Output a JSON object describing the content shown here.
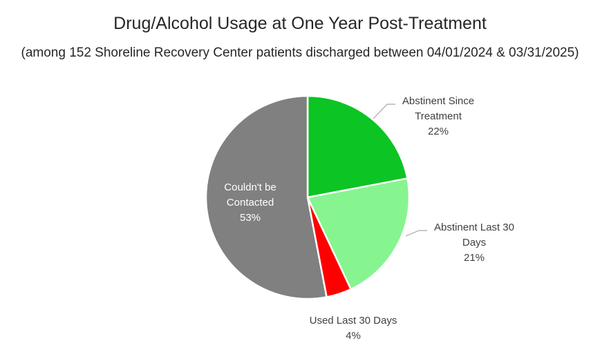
{
  "title": "Drug/Alcohol Usage at One Year Post-Treatment",
  "subtitle": "(among 152 Shoreline Recovery Center patients discharged between 04/01/2024 & 03/31/2025)",
  "chart_data": {
    "type": "pie",
    "title": "Drug/Alcohol Usage at One Year Post-Treatment",
    "subtitle": "(among 152 Shoreline Recovery Center patients discharged between 04/01/2024 & 03/31/2025)",
    "slices": [
      {
        "label": "Abstinent Since Treatment",
        "value": 22,
        "display": "22%",
        "color": "#0cc424"
      },
      {
        "label": "Abstinent Last 30 Days",
        "value": 21,
        "display": "21%",
        "color": "#86f58f"
      },
      {
        "label": "Used Last 30 Days",
        "value": 4,
        "display": "4%",
        "color": "#ff0000"
      },
      {
        "label": "Couldn't be Contacted",
        "value": 53,
        "display": "53%",
        "color": "#808080"
      }
    ],
    "legend": "none"
  }
}
